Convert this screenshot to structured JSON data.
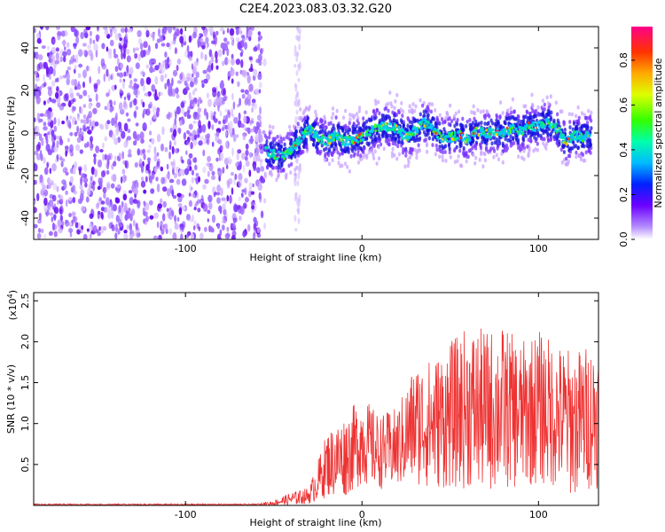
{
  "title": "C2E4.2023.083.03.32.G20",
  "chart_data": [
    {
      "type": "heatmap",
      "xlabel": "Height of straight line (km)",
      "ylabel": "Frequency (Hz)",
      "xlim": [
        -186,
        134
      ],
      "ylim": [
        -50,
        50
      ],
      "xticks": [
        -100,
        0,
        100
      ],
      "yticks": [
        -40,
        -20,
        0,
        20,
        40
      ],
      "noise_region_x": [
        -186,
        -55
      ],
      "noise_strip_x": [
        -38,
        -35
      ],
      "signal_track": {
        "x": [
          -55,
          -50,
          -45,
          -40,
          -35,
          -30,
          -25,
          -20,
          -15,
          -10,
          -5,
          0,
          5,
          10,
          15,
          20,
          25,
          30,
          35,
          40,
          45,
          50,
          55,
          60,
          65,
          70,
          75,
          80,
          85,
          90,
          95,
          100,
          105,
          110,
          115,
          120,
          125,
          130
        ],
        "y": [
          -8,
          -10,
          -11,
          -8,
          -3,
          2,
          -2,
          -4,
          -1,
          -4,
          -3,
          -2,
          1,
          3,
          3,
          2,
          -2,
          1,
          5,
          2,
          -2,
          -2,
          -1,
          -3,
          1,
          0,
          0,
          0,
          2,
          1,
          3,
          3,
          5,
          3,
          -4,
          -1,
          -2,
          -1
        ]
      },
      "colorbar": {
        "label": "Normalized spectral amplitude",
        "range": [
          0.0,
          0.95
        ],
        "ticks": [
          0.0,
          0.2,
          0.4,
          0.6,
          0.8
        ],
        "tick_labels": [
          "0.0",
          "0.2",
          "0.4",
          "0.6",
          "0.8"
        ]
      }
    },
    {
      "type": "line",
      "xlabel": "Height of straight line (km)",
      "ylabel": "SNR (10 * v/v)",
      "y_scale_label": "(x10",
      "y_scale_exp": "4",
      "y_scale_close": ")",
      "xlim": [
        -186,
        134
      ],
      "ylim": [
        0,
        2.6
      ],
      "xticks": [
        -100,
        0,
        100
      ],
      "yticks": [
        0.5,
        1.0,
        1.5,
        2.0,
        2.5
      ],
      "color": "#ee3333",
      "envelope": {
        "x": [
          -186,
          -60,
          -50,
          -40,
          -30,
          -25,
          -20,
          -10,
          0,
          10,
          20,
          30,
          40,
          50,
          60,
          70,
          80,
          90,
          100,
          110,
          120,
          130
        ],
        "mean": [
          0.01,
          0.01,
          0.03,
          0.08,
          0.12,
          0.3,
          0.5,
          0.6,
          0.8,
          0.65,
          0.7,
          1.0,
          1.0,
          1.1,
          1.2,
          1.15,
          1.2,
          1.1,
          1.2,
          1.1,
          1.0,
          1.1
        ],
        "spread": [
          0.01,
          0.01,
          0.03,
          0.08,
          0.1,
          0.25,
          0.4,
          0.5,
          0.55,
          0.45,
          0.5,
          0.75,
          0.8,
          0.9,
          1.0,
          1.0,
          1.0,
          0.9,
          0.95,
          0.9,
          0.9,
          0.9
        ]
      }
    }
  ]
}
